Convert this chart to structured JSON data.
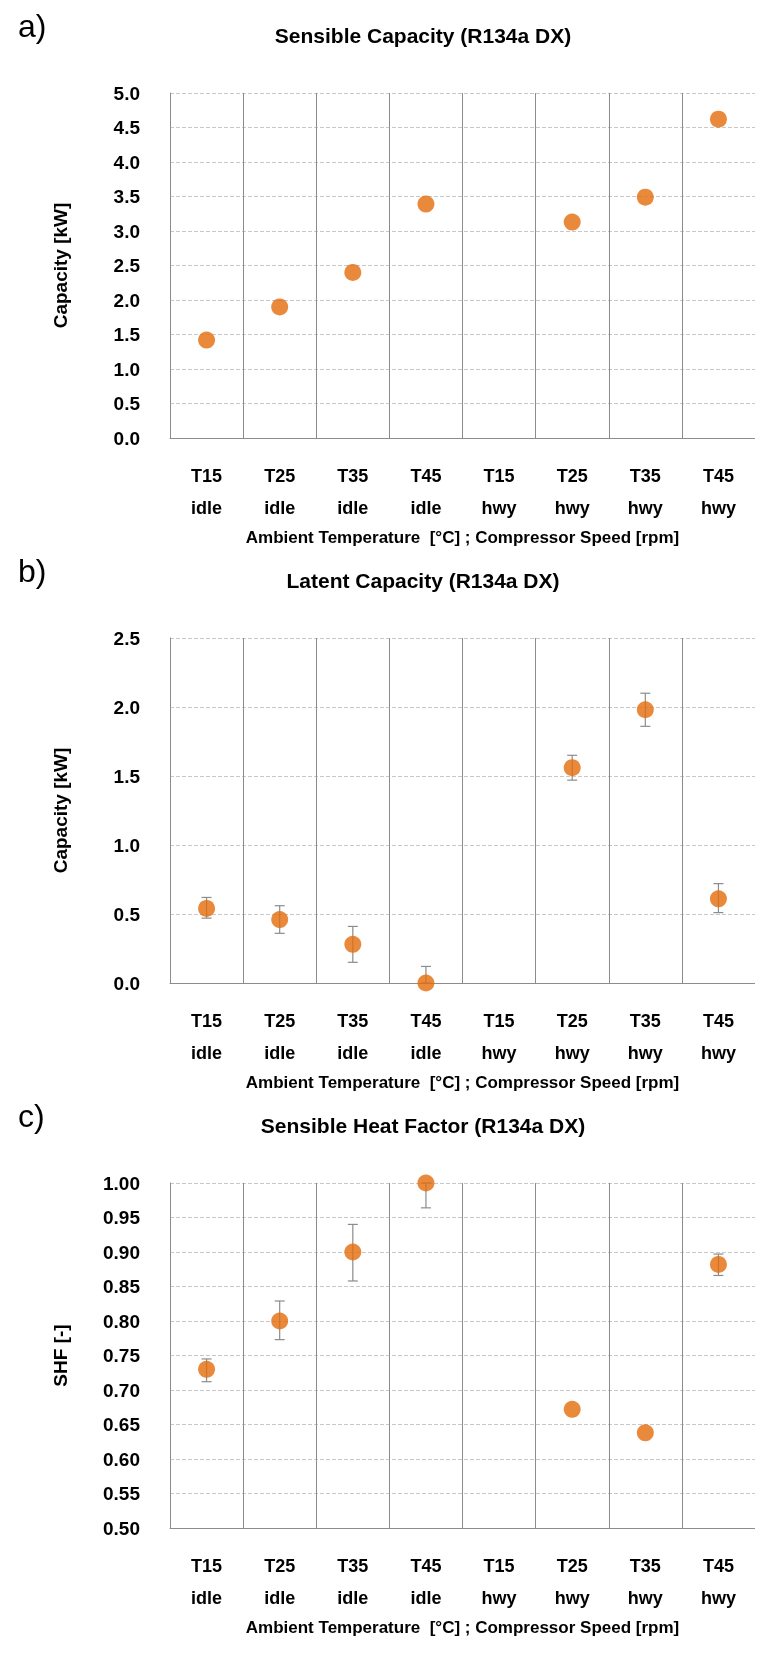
{
  "chart_data": [
    {
      "type": "scatter",
      "title": "Sensible Capacity (R134a DX)",
      "annotations": [
        "a)"
      ],
      "xlabel": "Ambient Temperature  [°C] ; Compressor Speed [rpm]",
      "ylabel": "Capacity [kW]",
      "categories": [
        "T15\nidle",
        "T25\nidle",
        "T35\nidle",
        "T45\nidle",
        "T15\nhwy",
        "T25\nhwy",
        "T35\nhwy",
        "T45\nhwy"
      ],
      "series": [
        {
          "color": "#e46c0a",
          "values": [
            1.42,
            1.9,
            2.4,
            3.39,
            null,
            3.13,
            3.49,
            4.62
          ]
        }
      ],
      "ylim": [
        0,
        5
      ],
      "yticks": [
        {
          "value": 0,
          "label": "0.0"
        },
        {
          "value": 0.5,
          "label": "0.5"
        },
        {
          "value": 1,
          "label": "1.0"
        },
        {
          "value": 1.5,
          "label": "1.5"
        },
        {
          "value": 2,
          "label": "2.0"
        },
        {
          "value": 2.5,
          "label": "2.5"
        },
        {
          "value": 3,
          "label": "3.0"
        },
        {
          "value": 3.5,
          "label": "3.5"
        },
        {
          "value": 4,
          "label": "4.0"
        },
        {
          "value": 4.5,
          "label": "4.5"
        },
        {
          "value": 5,
          "label": "5.0"
        }
      ],
      "grid": true,
      "marker": "circle"
    },
    {
      "type": "scatter",
      "title": "Latent Capacity (R134a DX)",
      "annotations": [
        "b)"
      ],
      "xlabel": "Ambient Temperature  [°C] ; Compressor Speed [rpm]",
      "ylabel": "Capacity [kW]",
      "categories": [
        "T15\nidle",
        "T25\nidle",
        "T35\nidle",
        "T45\nidle",
        "T15\nhwy",
        "T25\nhwy",
        "T35\nhwy",
        "T45\nhwy"
      ],
      "series": [
        {
          "color": "#e46c0a",
          "values": [
            0.54,
            0.46,
            0.28,
            0,
            null,
            1.56,
            1.98,
            0.61
          ],
          "errors": [
            [
              0.47,
              0.62
            ],
            [
              0.36,
              0.56
            ],
            [
              0.15,
              0.41
            ],
            [
              0,
              0.12
            ],
            null,
            [
              1.47,
              1.65
            ],
            [
              1.86,
              2.1
            ],
            [
              0.51,
              0.72
            ]
          ]
        }
      ],
      "ylim": [
        0,
        2.5
      ],
      "yticks": [
        {
          "value": 0,
          "label": "0.0"
        },
        {
          "value": 0.5,
          "label": "0.5"
        },
        {
          "value": 1,
          "label": "1.0"
        },
        {
          "value": 1.5,
          "label": "1.5"
        },
        {
          "value": 2,
          "label": "2.0"
        },
        {
          "value": 2.5,
          "label": "2.5"
        }
      ],
      "grid": true,
      "marker": "circle"
    },
    {
      "type": "scatter",
      "title": "Sensible Heat Factor (R134a DX)",
      "annotations": [
        "c)"
      ],
      "xlabel": "Ambient Temperature  [°C] ; Compressor Speed [rpm]",
      "ylabel": "SHF [-]",
      "categories": [
        "T15\nidle",
        "T25\nidle",
        "T35\nidle",
        "T45\nidle",
        "T15\nhwy",
        "T25\nhwy",
        "T35\nhwy",
        "T45\nhwy"
      ],
      "series": [
        {
          "color": "#e46c0a",
          "values": [
            0.73,
            0.8,
            0.9,
            1.0,
            null,
            0.672,
            0.638,
            0.882
          ],
          "errors": [
            [
              0.712,
              0.745
            ],
            [
              0.773,
              0.829
            ],
            [
              0.858,
              0.94
            ],
            [
              0.964,
              1.0
            ],
            null,
            null,
            null,
            [
              0.866,
              0.897
            ]
          ]
        }
      ],
      "ylim": [
        0.5,
        1
      ],
      "yticks": [
        {
          "value": 0.5,
          "label": "0.50"
        },
        {
          "value": 0.55,
          "label": "0.55"
        },
        {
          "value": 0.6,
          "label": "0.60"
        },
        {
          "value": 0.65,
          "label": "0.65"
        },
        {
          "value": 0.7,
          "label": "0.70"
        },
        {
          "value": 0.75,
          "label": "0.75"
        },
        {
          "value": 0.8,
          "label": "0.80"
        },
        {
          "value": 0.85,
          "label": "0.85"
        },
        {
          "value": 0.9,
          "label": "0.90"
        },
        {
          "value": 0.95,
          "label": "0.95"
        },
        {
          "value": 1,
          "label": "1.00"
        }
      ],
      "grid": true,
      "marker": "circle"
    }
  ]
}
